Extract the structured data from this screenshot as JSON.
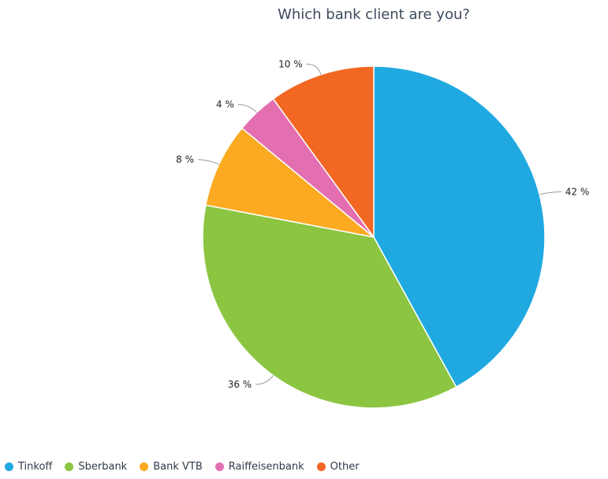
{
  "chart_data": {
    "type": "pie",
    "title": "Which bank client are you?",
    "slices": [
      {
        "name": "Tinkoff",
        "value": 42,
        "label": "42 %",
        "color": "#20a9e1"
      },
      {
        "name": "Sberbank",
        "value": 36,
        "label": "36 %",
        "color": "#8bc541"
      },
      {
        "name": "Bank VTB",
        "value": 8,
        "label": "8 %",
        "color": "#fbaa21"
      },
      {
        "name": "Raiffeisenbank",
        "value": 4,
        "label": "4 %",
        "color": "#e36fb1"
      },
      {
        "name": "Other",
        "value": 10,
        "label": "10 %",
        "color": "#f26722"
      }
    ],
    "legend_position": "bottom-left"
  }
}
